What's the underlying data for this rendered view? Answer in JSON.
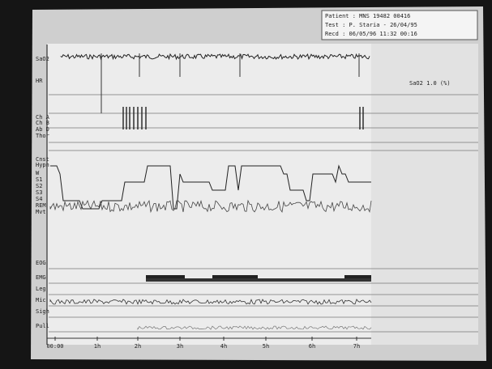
{
  "header": {
    "lines": [
      "Patient : MNS 19482 00416",
      "Test : P. Staria - 26/04/95",
      "Recd : 06/05/96 11:32 00:16"
    ]
  },
  "annotation": "SaO2 1.0 (%)",
  "channels": [
    {
      "label": "SaO2"
    },
    {
      "label": "HR"
    },
    {
      "label": "Ch A"
    },
    {
      "label": "Ch B"
    },
    {
      "label": "Ab D"
    },
    {
      "label": "Thor"
    },
    {
      "label": "Cnst"
    },
    {
      "label": "Hypn"
    },
    {
      "label": "W"
    },
    {
      "label": "S1"
    },
    {
      "label": "S2"
    },
    {
      "label": "S3"
    },
    {
      "label": "S4"
    },
    {
      "label": "REM"
    },
    {
      "label": "Mvt"
    },
    {
      "label": "EOG"
    },
    {
      "label": "EMG"
    },
    {
      "label": "Leg"
    },
    {
      "label": "Mic"
    },
    {
      "label": "Sigh"
    },
    {
      "label": "Pull"
    }
  ],
  "time_axis": [
    "00:00",
    "1h",
    "2h",
    "3h",
    "4h",
    "5h",
    "6h",
    "7h"
  ]
}
